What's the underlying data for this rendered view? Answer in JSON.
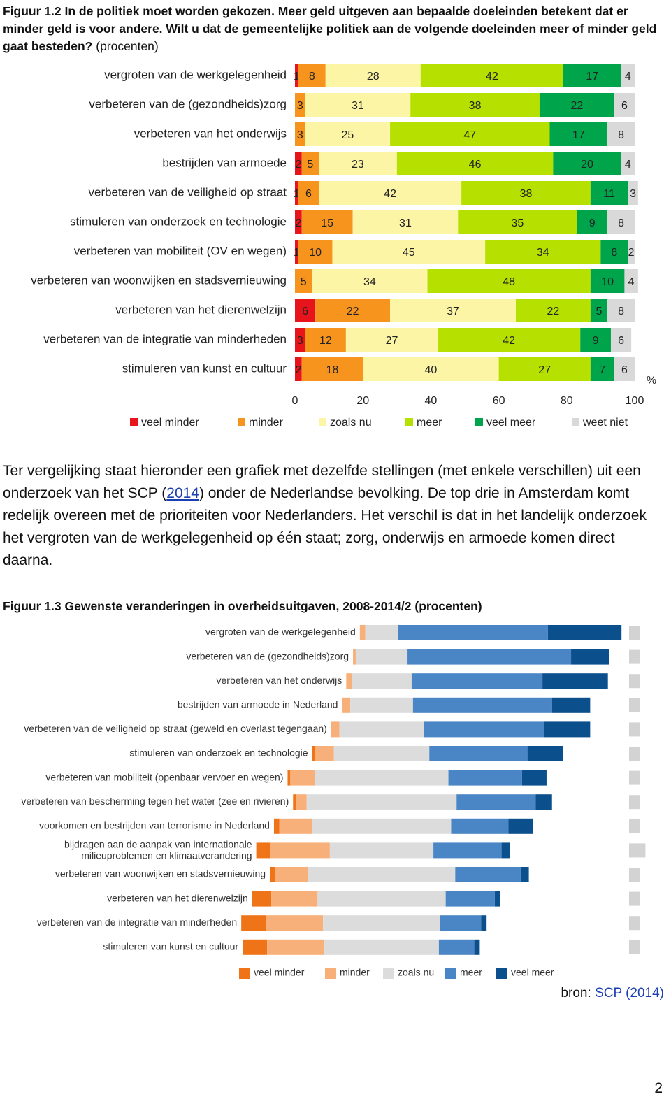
{
  "chart_data": [
    {
      "type": "stacked-bar",
      "title": "Figuur 1.2  In de politiek moet worden gekozen. Meer geld uitgeven aan bepaalde doeleinden betekent dat er minder geld is voor andere. Wilt u dat de gemeentelijke politiek aan de volgende doeleinden meer of minder geld gaat besteden?",
      "subtitle": "(procenten)",
      "categories": [
        "vergroten van de werkgelegenheid",
        "verbeteren van de (gezondheids)zorg",
        "verbeteren van het onderwijs",
        "bestrijden van armoede",
        "verbeteren van de veiligheid op straat",
        "stimuleren van onderzoek en technologie",
        "verbeteren van mobiliteit (OV en wegen)",
        "verbeteren van woonwijken en stadsvernieuwing",
        "verbeteren van het dierenwelzijn",
        "verbeteren van de integratie van minderheden",
        "stimuleren van kunst en cultuur"
      ],
      "series": [
        {
          "name": "veel minder",
          "color": "#e8141b",
          "values": [
            1,
            null,
            null,
            2,
            1,
            2,
            1,
            null,
            6,
            3,
            2
          ]
        },
        {
          "name": "minder",
          "color": "#f7941d",
          "values": [
            8,
            3,
            3,
            5,
            6,
            15,
            10,
            5,
            22,
            12,
            18
          ]
        },
        {
          "name": "zoals nu",
          "color": "#fdf5a6",
          "values": [
            28,
            31,
            25,
            23,
            42,
            31,
            45,
            34,
            37,
            27,
            40
          ]
        },
        {
          "name": "meer",
          "color": "#b5e000",
          "values": [
            42,
            38,
            47,
            46,
            38,
            35,
            34,
            48,
            22,
            42,
            27
          ]
        },
        {
          "name": "veel meer",
          "color": "#00a44a",
          "values": [
            17,
            22,
            17,
            20,
            11,
            9,
            8,
            10,
            5,
            9,
            7
          ]
        },
        {
          "name": "weet niet",
          "color": "#d9d9d9",
          "values": [
            4,
            6,
            8,
            4,
            3,
            8,
            2,
            4,
            8,
            6,
            6
          ]
        }
      ],
      "xlim": [
        0,
        100
      ],
      "xticks": [
        0,
        20,
        40,
        60,
        80,
        100
      ],
      "xlabel": "%"
    },
    {
      "type": "diverging-bar",
      "title": "Figuur 1.3  Gewenste veranderingen in overheidsuitgaven, 2008-2014/2 (procenten)",
      "categories": [
        "vergroten van de werkgelegenheid",
        "verbeteren van de (gezondheids)zorg",
        "verbeteren van het onderwijs",
        "bestrijden van armoede in Nederland",
        "verbeteren van de veiligheid op straat (geweld en overlast tegengaan)",
        "stimuleren van onderzoek en technologie",
        "verbeteren van mobiliteit (openbaar vervoer en wegen)",
        "verbeteren van bescherming tegen het water (zee en rivieren)",
        "voorkomen en bestrijden van terrorisme in Nederland",
        [
          "bijdragen aan de aanpak van internationale",
          "milieuproblemen en klimaatverandering"
        ],
        "verbeteren van woonwijken en stadsvernieuwing",
        "verbeteren van het dierenwelzijn",
        "verbeteren van de integratie van minderheden",
        "stimuleren van kunst en cultuur"
      ],
      "series": [
        {
          "name": "veel minder",
          "color": "#ef7417",
          "values": [
            0,
            0,
            0,
            0,
            0,
            1,
            1,
            1,
            2,
            5,
            2,
            7,
            9,
            9
          ]
        },
        {
          "name": "minder",
          "color": "#f8b07a",
          "values": [
            2,
            1,
            2,
            3,
            3,
            7,
            9,
            4,
            12,
            22,
            12,
            17,
            21,
            21
          ]
        },
        {
          "name": "zoals nu",
          "color": "#dcdcdc",
          "values": [
            12,
            19,
            22,
            23,
            31,
            35,
            49,
            55,
            51,
            38,
            54,
            47,
            43,
            42
          ]
        },
        {
          "name": "meer",
          "color": "#4a86c5",
          "values": [
            55,
            60,
            48,
            51,
            44,
            36,
            27,
            29,
            21,
            25,
            24,
            18,
            15,
            13
          ]
        },
        {
          "name": "veel meer",
          "color": "#0b4f8c",
          "values": [
            27,
            14,
            24,
            14,
            17,
            13,
            9,
            6,
            9,
            3,
            3,
            2,
            2,
            2
          ]
        },
        {
          "color": "#d3d3d3",
          "values": [
            4,
            4,
            4,
            4,
            4,
            4,
            4,
            4,
            4,
            6,
            4,
            4,
            4,
            4
          ]
        }
      ]
    }
  ],
  "paragraph": {
    "before": "Ter vergelijking staat hieronder een grafiek met dezelfde stellingen (met enkele verschillen) uit een onderzoek van het SCP (",
    "link": "2014",
    "after": ") onder de Nederlandse bevolking. De top drie in Amsterdam komt redelijk overeen met de prioriteiten voor Nederlanders. Het verschil is dat in het landelijk onderzoek het vergroten van de werkgelegenheid op één staat; zorg, onderwijs en armoede komen direct daarna."
  },
  "source": {
    "label": "bron:",
    "link": "SCP (2014)"
  },
  "page_number": "2"
}
